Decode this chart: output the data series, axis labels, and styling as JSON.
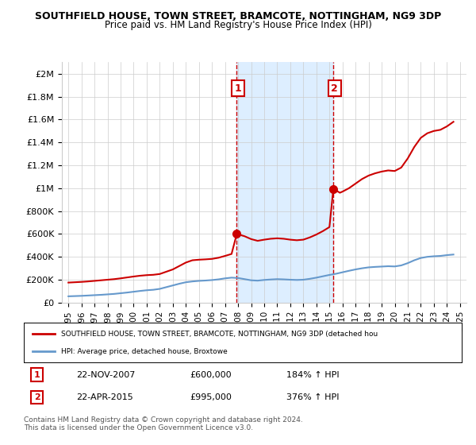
{
  "title1": "SOUTHFIELD HOUSE, TOWN STREET, BRAMCOTE, NOTTINGHAM, NG9 3DP",
  "title2": "Price paid vs. HM Land Registry's House Price Index (HPI)",
  "ylabel_ticks": [
    "£0",
    "£200K",
    "£400K",
    "£600K",
    "£800K",
    "£1M",
    "£1.2M",
    "£1.4M",
    "£1.6M",
    "£1.8M",
    "£2M"
  ],
  "ylabel_values": [
    0,
    200000,
    400000,
    600000,
    800000,
    1000000,
    1200000,
    1400000,
    1600000,
    1800000,
    2000000
  ],
  "ylim": [
    0,
    2100000
  ],
  "x_start_year": 1995,
  "x_end_year": 2025,
  "sale1_year": 2007.9,
  "sale1_price": 600000,
  "sale1_label": "1",
  "sale1_date": "22-NOV-2007",
  "sale1_amount": "£600,000",
  "sale1_hpi": "184% ↑ HPI",
  "sale2_year": 2015.3,
  "sale2_price": 995000,
  "sale2_label": "2",
  "sale2_date": "22-APR-2015",
  "sale2_amount": "£995,000",
  "sale2_hpi": "376% ↑ HPI",
  "red_color": "#cc0000",
  "blue_color": "#6699cc",
  "shading_color": "#ddeeff",
  "background_color": "#ffffff",
  "grid_color": "#cccccc",
  "legend_label_red": "SOUTHFIELD HOUSE, TOWN STREET, BRAMCOTE, NOTTINGHAM, NG9 3DP (detached hou",
  "legend_label_blue": "HPI: Average price, detached house, Broxtowe",
  "footer": "Contains HM Land Registry data © Crown copyright and database right 2024.\nThis data is licensed under the Open Government Licence v3.0.",
  "hpi_x": [
    1995.0,
    1995.5,
    1996.0,
    1996.5,
    1997.0,
    1997.5,
    1998.0,
    1998.5,
    1999.0,
    1999.5,
    2000.0,
    2000.5,
    2001.0,
    2001.5,
    2002.0,
    2002.5,
    2003.0,
    2003.5,
    2004.0,
    2004.5,
    2005.0,
    2005.5,
    2006.0,
    2006.5,
    2007.0,
    2007.5,
    2008.0,
    2008.5,
    2009.0,
    2009.5,
    2010.0,
    2010.5,
    2011.0,
    2011.5,
    2012.0,
    2012.5,
    2013.0,
    2013.5,
    2014.0,
    2014.5,
    2015.0,
    2015.5,
    2016.0,
    2016.5,
    2017.0,
    2017.5,
    2018.0,
    2018.5,
    2019.0,
    2019.5,
    2020.0,
    2020.5,
    2021.0,
    2021.5,
    2022.0,
    2022.5,
    2023.0,
    2023.5,
    2024.0,
    2024.5
  ],
  "hpi_y": [
    55000,
    57000,
    59000,
    62000,
    65000,
    68000,
    72000,
    76000,
    82000,
    88000,
    95000,
    102000,
    108000,
    112000,
    120000,
    135000,
    150000,
    165000,
    178000,
    185000,
    190000,
    193000,
    197000,
    203000,
    212000,
    218000,
    215000,
    205000,
    195000,
    192000,
    198000,
    202000,
    205000,
    203000,
    200000,
    198000,
    200000,
    208000,
    218000,
    230000,
    242000,
    252000,
    265000,
    278000,
    290000,
    300000,
    308000,
    312000,
    315000,
    318000,
    316000,
    325000,
    345000,
    370000,
    390000,
    400000,
    405000,
    408000,
    415000,
    420000
  ],
  "red_x": [
    1995.0,
    1995.5,
    1996.0,
    1996.5,
    1997.0,
    1997.5,
    1998.0,
    1998.5,
    1999.0,
    1999.5,
    2000.0,
    2000.5,
    2001.0,
    2001.5,
    2002.0,
    2002.5,
    2003.0,
    2003.5,
    2004.0,
    2004.5,
    2005.0,
    2005.5,
    2006.0,
    2006.5,
    2007.0,
    2007.5,
    2007.9,
    2008.5,
    2009.0,
    2009.5,
    2010.0,
    2010.5,
    2011.0,
    2011.5,
    2012.0,
    2012.5,
    2013.0,
    2013.5,
    2014.0,
    2014.5,
    2015.0,
    2015.3,
    2015.8,
    2016.0,
    2016.5,
    2017.0,
    2017.5,
    2018.0,
    2018.5,
    2019.0,
    2019.5,
    2020.0,
    2020.5,
    2021.0,
    2021.5,
    2022.0,
    2022.5,
    2023.0,
    2023.5,
    2024.0,
    2024.5
  ],
  "red_y": [
    175000,
    178000,
    181000,
    185000,
    190000,
    195000,
    200000,
    205000,
    212000,
    220000,
    228000,
    235000,
    240000,
    243000,
    250000,
    270000,
    290000,
    320000,
    350000,
    370000,
    375000,
    378000,
    382000,
    392000,
    408000,
    425000,
    600000,
    580000,
    555000,
    540000,
    550000,
    558000,
    562000,
    558000,
    550000,
    545000,
    550000,
    570000,
    595000,
    625000,
    660000,
    995000,
    960000,
    970000,
    1000000,
    1040000,
    1080000,
    1110000,
    1130000,
    1145000,
    1155000,
    1150000,
    1180000,
    1260000,
    1360000,
    1440000,
    1480000,
    1500000,
    1510000,
    1540000,
    1580000
  ]
}
